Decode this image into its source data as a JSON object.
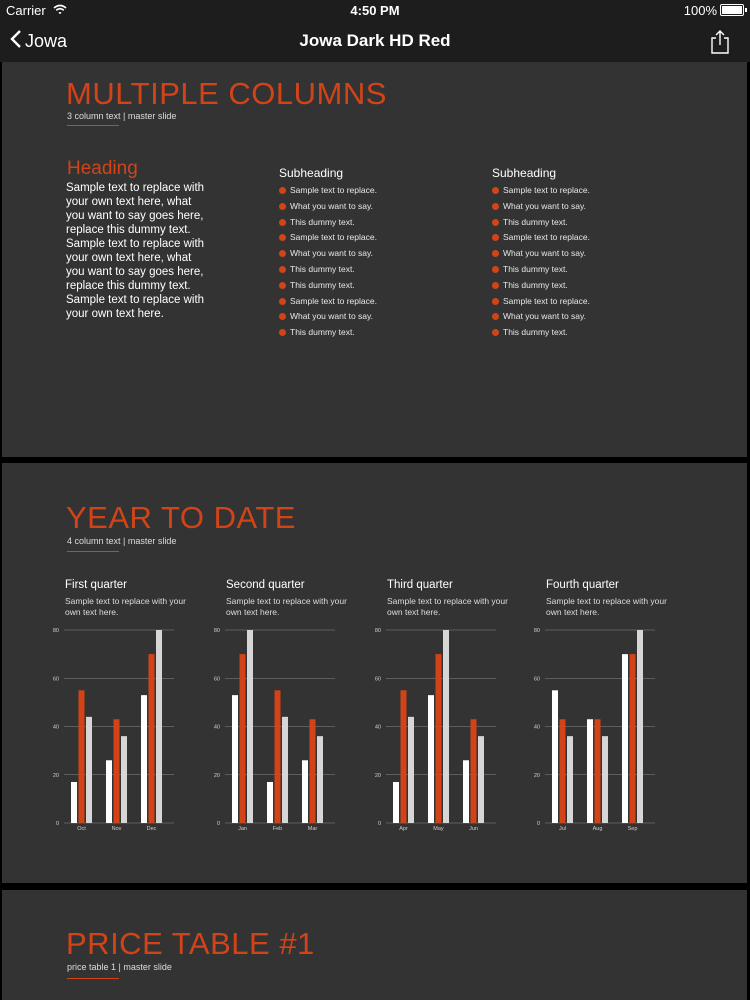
{
  "status": {
    "carrier": "Carrier",
    "time": "4:50 PM",
    "battery": "100%"
  },
  "nav": {
    "back_label": "Jowa",
    "title": "Jowa Dark HD Red"
  },
  "colors": {
    "accent": "#d24418",
    "slide_bg": "#333333",
    "bar_white": "#ffffff",
    "bar_grey": "#d6d6d6"
  },
  "slide1": {
    "title": "MULTIPLE COLUMNS",
    "subtitle": "3 column text  |  master slide",
    "heading": "Heading",
    "paragraph": "Sample text to replace with your own text here, what you want to say goes here, replace this dummy text. Sample text to replace with your own text here, what you want to say goes here, replace this dummy text. Sample text to replace with your own text here.",
    "columns": [
      {
        "subheading": "Subheading",
        "items": [
          "Sample text to replace.",
          "What you want to say.",
          "This dummy text.",
          "Sample text to replace.",
          "What you want to say.",
          "This dummy text.",
          "This dummy text.",
          "Sample text to replace.",
          "What you want to say.",
          "This dummy text."
        ]
      },
      {
        "subheading": "Subheading",
        "items": [
          "Sample text to replace.",
          "What you want to say.",
          "This dummy text.",
          "Sample text to replace.",
          "What you want to say.",
          "This dummy text.",
          "This dummy text.",
          "Sample text to replace.",
          "What you want to say.",
          "This dummy text."
        ]
      }
    ]
  },
  "slide2": {
    "title": "YEAR TO DATE",
    "subtitle": "4 column text  |  master slide",
    "quarters": [
      {
        "title": "First quarter",
        "text": "Sample text to replace with your own text here."
      },
      {
        "title": "Second quarter",
        "text": "Sample text to replace with your own text here."
      },
      {
        "title": "Third quarter",
        "text": "Sample text to replace with your own text here."
      },
      {
        "title": "Fourth quarter",
        "text": "Sample text to replace with your own text here."
      }
    ]
  },
  "slide3": {
    "title": "PRICE TABLE #1",
    "subtitle": "price table 1  |  master slide"
  },
  "chart_data": [
    {
      "type": "bar",
      "categories": [
        "Oct",
        "Nov",
        "Dec"
      ],
      "series": [
        {
          "values": [
            17,
            26,
            53
          ]
        },
        {
          "values": [
            55,
            43,
            70
          ]
        },
        {
          "values": [
            44,
            36,
            80
          ]
        }
      ],
      "ylim": [
        0,
        80
      ],
      "yticks": [
        "0",
        "20",
        "40",
        "60",
        "80"
      ],
      "grid": true
    },
    {
      "type": "bar",
      "categories": [
        "Jan",
        "Feb",
        "Mar"
      ],
      "series": [
        {
          "values": [
            53,
            17,
            26
          ]
        },
        {
          "values": [
            70,
            55,
            43
          ]
        },
        {
          "values": [
            80,
            44,
            36
          ]
        }
      ],
      "ylim": [
        0,
        80
      ],
      "yticks": [
        "0",
        "20",
        "40",
        "60",
        "80"
      ],
      "grid": true
    },
    {
      "type": "bar",
      "categories": [
        "Apr",
        "May",
        "Jun"
      ],
      "series": [
        {
          "values": [
            17,
            53,
            26
          ]
        },
        {
          "values": [
            55,
            70,
            43
          ]
        },
        {
          "values": [
            44,
            80,
            36
          ]
        }
      ],
      "ylim": [
        0,
        80
      ],
      "yticks": [
        "0",
        "20",
        "40",
        "60",
        "80"
      ],
      "grid": true
    },
    {
      "type": "bar",
      "categories": [
        "Jul",
        "Aug",
        "Sep"
      ],
      "series": [
        {
          "values": [
            55,
            43,
            70
          ]
        },
        {
          "values": [
            43,
            43,
            70
          ]
        },
        {
          "values": [
            36,
            36,
            80
          ]
        }
      ],
      "ylim": [
        0,
        80
      ],
      "yticks": [
        "0",
        "20",
        "40",
        "60",
        "80"
      ],
      "grid": true
    }
  ]
}
